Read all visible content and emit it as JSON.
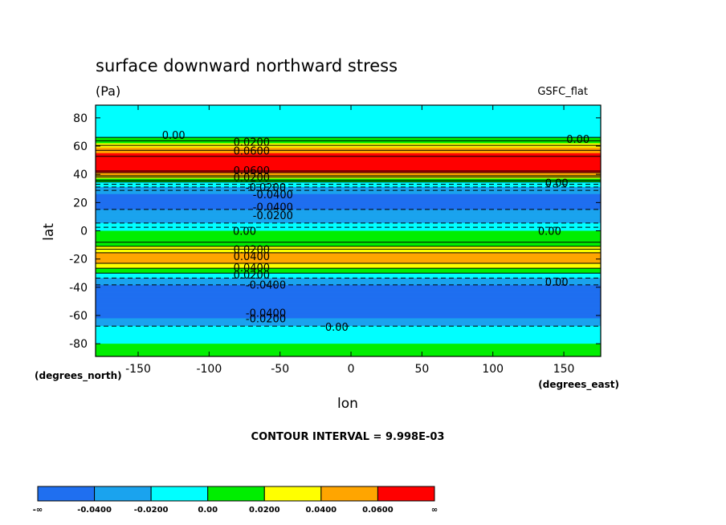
{
  "chart_data": {
    "type": "heatmap",
    "title": "surface downward northward stress",
    "units": "(Pa)",
    "model": "GSFC_flat",
    "xlabel": "lon",
    "ylabel": "lat",
    "xunits": "(degrees_east)",
    "yunits": "(degrees_north)",
    "xlim": [
      -180,
      176
    ],
    "ylim": [
      -89,
      89
    ],
    "xticks": [
      -150,
      -100,
      -50,
      0,
      50,
      100,
      150
    ],
    "yticks": [
      80,
      60,
      40,
      20,
      0,
      -20,
      -40,
      -60,
      -80
    ],
    "xtick_labels": [
      "-150",
      "-100",
      "-50",
      "0",
      "50",
      "100",
      "150"
    ],
    "ytick_labels": [
      "80",
      "60",
      "40",
      "20",
      "0",
      "-20",
      "-40",
      "-60",
      "-80"
    ],
    "contour_interval_text": "CONTOUR INTERVAL = 9.998E-03",
    "zonal_profile": {
      "lat": [
        -89,
        -80,
        -70,
        -65,
        -62,
        -58,
        -50,
        -40,
        -35,
        -32,
        -28,
        -25,
        -22,
        -18,
        -14,
        -10,
        -5,
        0,
        3,
        7,
        10,
        14,
        18,
        22,
        26,
        30,
        34,
        37,
        40,
        43,
        47,
        51,
        55,
        59,
        62,
        65,
        70,
        80,
        89
      ],
      "value": [
        0.004,
        0.0,
        -0.01,
        -0.03,
        -0.04,
        -0.045,
        -0.05,
        -0.045,
        -0.03,
        -0.01,
        0.01,
        0.03,
        0.045,
        0.048,
        0.035,
        0.015,
        0.002,
        0.0,
        -0.012,
        -0.025,
        -0.03,
        -0.038,
        -0.045,
        -0.048,
        -0.04,
        -0.025,
        -0.005,
        0.02,
        0.05,
        0.075,
        0.08,
        0.078,
        0.06,
        0.04,
        0.02,
        0.003,
        -0.01,
        -0.01,
        -0.005
      ]
    },
    "contour_labels": [
      {
        "text": "0.00",
        "lon": -125,
        "lat": 68
      },
      {
        "text": "0.00",
        "lon": 160,
        "lat": 65
      },
      {
        "text": "0.0200",
        "lon": -70,
        "lat": 63
      },
      {
        "text": "0.0600",
        "lon": -70,
        "lat": 57
      },
      {
        "text": "0.0600",
        "lon": -70,
        "lat": 43
      },
      {
        "text": "0.0200",
        "lon": -70,
        "lat": 38
      },
      {
        "text": "-0.0200",
        "lon": -60,
        "lat": 31
      },
      {
        "text": "-0.0400",
        "lon": -55,
        "lat": 26
      },
      {
        "text": "0.00",
        "lon": 145,
        "lat": 34
      },
      {
        "text": "-0.0400",
        "lon": -55,
        "lat": 17
      },
      {
        "text": "-0.0200",
        "lon": -55,
        "lat": 11
      },
      {
        "text": "0.00",
        "lon": -75,
        "lat": 0
      },
      {
        "text": "0.00",
        "lon": 140,
        "lat": 0
      },
      {
        "text": "0.0200",
        "lon": -70,
        "lat": -13
      },
      {
        "text": "0.0400",
        "lon": -70,
        "lat": -18
      },
      {
        "text": "0.0400",
        "lon": -70,
        "lat": -26
      },
      {
        "text": "0.0200",
        "lon": -70,
        "lat": -31
      },
      {
        "text": "0.00",
        "lon": 145,
        "lat": -36
      },
      {
        "text": "-0.0400",
        "lon": -60,
        "lat": -38
      },
      {
        "text": "-0.0400",
        "lon": -60,
        "lat": -58
      },
      {
        "text": "-0.0200",
        "lon": -60,
        "lat": -62
      },
      {
        "text": "0.00",
        "lon": -10,
        "lat": -68
      }
    ],
    "colorbar": {
      "colors": [
        "#1f6ff0",
        "#1aa3ee",
        "#00ffff",
        "#00ee00",
        "#ffff00",
        "#ffa500",
        "#ff0000"
      ],
      "labels": [
        "-∞",
        "-0.0400",
        "-0.0200",
        "0.00",
        "0.0200",
        "0.0400",
        "0.0600",
        "∞"
      ]
    }
  }
}
